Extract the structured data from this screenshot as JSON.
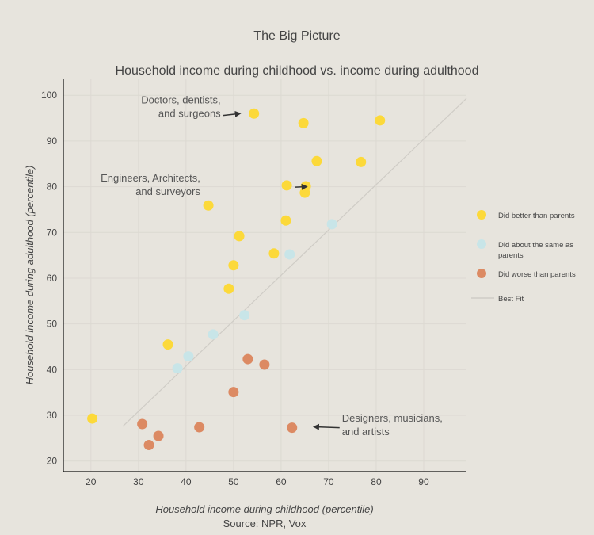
{
  "chart_data": {
    "type": "scatter",
    "page_title": "The Big Picture",
    "title": "Household income during childhood vs. income during adulthood",
    "xlabel": "Household income during childhood (percentile)",
    "ylabel": "Household income during adulthood (percentile)",
    "source": "Source: NPR, Vox",
    "xlim": [
      14.2,
      99
    ],
    "ylim": [
      17.7,
      103.5
    ],
    "xticks": [
      20,
      30,
      40,
      50,
      60,
      70,
      80,
      90
    ],
    "yticks": [
      20,
      30,
      40,
      50,
      60,
      70,
      80,
      90,
      100
    ],
    "grid": true,
    "legend_position": "right",
    "colors": {
      "better": "#fcd93a",
      "same": "#c8e5e8",
      "worse": "#dc8a63",
      "fit": "#cfccc6"
    },
    "series": [
      {
        "name": "Did better than parents",
        "key": "better",
        "points": [
          [
            20.3,
            29.3
          ],
          [
            36.2,
            45.5
          ],
          [
            44.7,
            75.9
          ],
          [
            49,
            57.7
          ],
          [
            50,
            62.8
          ],
          [
            51.2,
            69.2
          ],
          [
            54.3,
            96
          ],
          [
            58.5,
            65.4
          ],
          [
            61,
            72.6
          ],
          [
            61.2,
            80.3
          ],
          [
            64.7,
            93.9
          ],
          [
            65.2,
            80.1
          ],
          [
            65,
            78.7
          ],
          [
            67.5,
            85.6
          ],
          [
            76.8,
            85.4
          ],
          [
            80.8,
            94.5
          ]
        ]
      },
      {
        "name": "Did about the same as parents",
        "name_lines": [
          "Did about the same as",
          "parents"
        ],
        "key": "same",
        "points": [
          [
            38.2,
            40.3
          ],
          [
            40.5,
            42.9
          ],
          [
            45.7,
            47.7
          ],
          [
            52.3,
            51.9
          ],
          [
            61.8,
            65.2
          ],
          [
            70.7,
            71.8
          ]
        ]
      },
      {
        "name": "Did worse than parents",
        "key": "worse",
        "points": [
          [
            30.8,
            28.1
          ],
          [
            32.2,
            23.5
          ],
          [
            34.2,
            25.5
          ],
          [
            42.8,
            27.4
          ],
          [
            50,
            35.1
          ],
          [
            53,
            42.3
          ],
          [
            56.5,
            41.1
          ],
          [
            62.3,
            27.3
          ]
        ]
      }
    ],
    "best_fit": {
      "name": "Best Fit",
      "from": [
        26.7,
        27.6
      ],
      "to": [
        99,
        99.3
      ]
    },
    "annotations": [
      {
        "lines": [
          "Doctors, dentists,",
          "and surgeons"
        ],
        "anchor": "end",
        "at": [
          47.3,
          98.2
        ],
        "arrow_from": [
          47.8,
          95.6
        ],
        "arrow_to": [
          51.3,
          96
        ]
      },
      {
        "lines": [
          "Engineers, Architects,",
          "and surveyors"
        ],
        "anchor": "end",
        "at": [
          43,
          81.1
        ],
        "arrow_from": [
          63,
          79.9
        ],
        "arrow_to": [
          65.3,
          80
        ]
      },
      {
        "lines": [
          "Designers, musicians,",
          "and artists"
        ],
        "anchor": "start",
        "at": [
          72.8,
          28.6
        ],
        "arrow_from": [
          72.3,
          27.3
        ],
        "arrow_to": [
          67,
          27.5
        ]
      }
    ]
  }
}
